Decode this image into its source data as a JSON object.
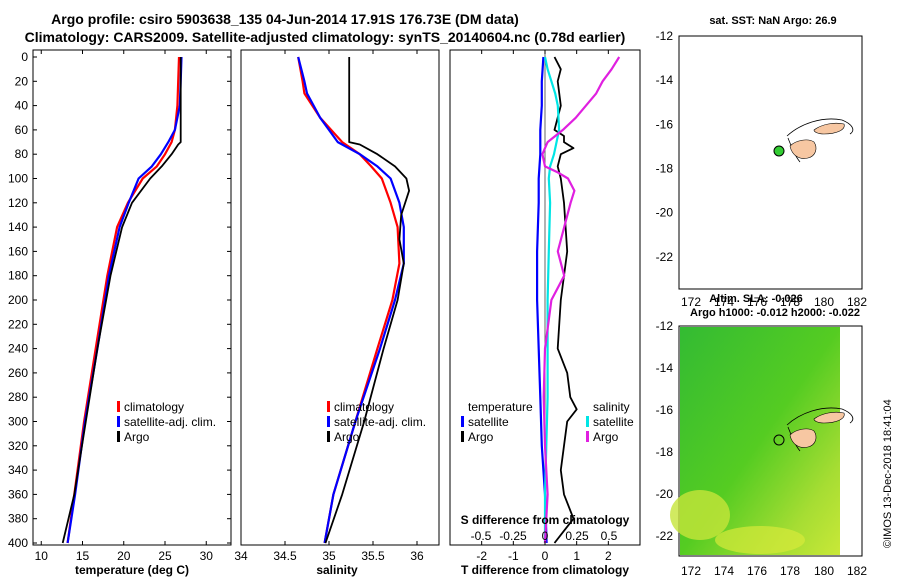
{
  "header": {
    "title_line1": "Argo profile: csiro 5903638_135 04-Jun-2014 17.91S 176.73E (DM data)",
    "title_line2": "Climatology: CARS2009. Satellite-adjusted climatology: synTS_20140604.nc (0.78d earlier)",
    "credit": "©IMOS 13-Dec-2018 18:41:04"
  },
  "colors": {
    "climatology": "#ff0000",
    "satellite": "#0000ff",
    "argo": "#000000",
    "sal_satellite": "#00e5e5",
    "sal_argo": "#e020e0",
    "land": "#f7c7a2"
  },
  "depth_ticks": [
    "0",
    "20",
    "40",
    "60",
    "80",
    "100",
    "120",
    "140",
    "160",
    "180",
    "200",
    "220",
    "240",
    "260",
    "280",
    "300",
    "320",
    "340",
    "360",
    "380",
    "400"
  ],
  "chart_data": [
    {
      "type": "line",
      "id": "temperature",
      "xlabel": "temperature (deg C)",
      "ylabel": "",
      "xlim": [
        9,
        33
      ],
      "ylim": [
        400,
        0
      ],
      "xticks": [
        "10",
        "15",
        "20",
        "25",
        "30"
      ],
      "legend": [
        "climatology",
        "satellite-adj. clim.",
        "Argo"
      ],
      "series": [
        {
          "name": "climatology",
          "x": [
            26.7,
            26.6,
            26.5,
            26.2,
            25.8,
            25.0,
            24.0,
            22.3,
            20.5,
            19.2,
            18.0,
            16.6,
            15.2,
            14.0,
            13.2
          ],
          "y": [
            0,
            20,
            40,
            60,
            70,
            80,
            90,
            100,
            120,
            140,
            180,
            240,
            300,
            360,
            400
          ]
        },
        {
          "name": "satellite-adj. clim.",
          "x": [
            27.0,
            26.9,
            26.8,
            26.2,
            25.4,
            24.5,
            23.4,
            21.8,
            20.6,
            19.5,
            18.2,
            16.8,
            15.3,
            14.1,
            13.2
          ],
          "y": [
            0,
            20,
            40,
            60,
            70,
            80,
            90,
            100,
            120,
            140,
            180,
            240,
            300,
            360,
            400
          ]
        },
        {
          "name": "Argo",
          "x": [
            26.9,
            26.9,
            26.9,
            26.9,
            26.9,
            26.6,
            25.8,
            24.6,
            23.2,
            21.0,
            19.8,
            18.4,
            16.8,
            15.4,
            14.0,
            12.6
          ],
          "y": [
            0,
            20,
            40,
            60,
            70,
            72,
            80,
            90,
            100,
            120,
            140,
            180,
            240,
            300,
            360,
            400
          ]
        }
      ]
    },
    {
      "type": "line",
      "id": "salinity",
      "xlabel": "salinity",
      "ylabel": "",
      "xlim": [
        34.0,
        36.25
      ],
      "ylim": [
        400,
        0
      ],
      "xticks": [
        "34",
        "34.5",
        "35",
        "35.5",
        "36"
      ],
      "legend": [
        "climatology",
        "satellite-adj. clim.",
        "Argo"
      ],
      "series": [
        {
          "name": "climatology",
          "x": [
            34.65,
            34.7,
            34.72,
            34.9,
            35.15,
            35.35,
            35.48,
            35.6,
            35.7,
            35.78,
            35.8,
            35.72,
            35.55,
            35.3,
            35.05,
            34.95
          ],
          "y": [
            0,
            20,
            30,
            50,
            70,
            80,
            90,
            100,
            120,
            140,
            170,
            200,
            240,
            300,
            360,
            400
          ]
        },
        {
          "name": "satellite-adj. clim.",
          "x": [
            34.65,
            34.72,
            34.75,
            34.9,
            35.1,
            35.35,
            35.55,
            35.7,
            35.8,
            35.85,
            35.85,
            35.75,
            35.58,
            35.3,
            35.05,
            34.95
          ],
          "y": [
            0,
            20,
            30,
            50,
            70,
            80,
            90,
            100,
            120,
            140,
            170,
            200,
            240,
            300,
            360,
            400
          ]
        },
        {
          "name": "Argo",
          "x": [
            35.23,
            35.23,
            35.23,
            35.23,
            35.35,
            35.55,
            35.75,
            35.88,
            35.91,
            35.82,
            35.8,
            35.85,
            35.78,
            35.62,
            35.4,
            35.15,
            34.96
          ],
          "y": [
            0,
            20,
            40,
            70,
            72,
            80,
            90,
            100,
            110,
            130,
            150,
            170,
            200,
            240,
            300,
            360,
            400
          ]
        }
      ]
    },
    {
      "type": "line",
      "id": "difference",
      "xlabel": "T difference from climatology",
      "top_label": "S difference from climatology",
      "xlim": [
        -3,
        3
      ],
      "ylim": [
        400,
        0
      ],
      "xticks": [
        "-2",
        "-1",
        "0",
        "1",
        "2"
      ],
      "top_ticks": [
        "-0.5",
        "-0.25",
        "0",
        "0.25",
        "0.5"
      ],
      "legend_left_title": "temperature",
      "legend_right_title": "salinity",
      "legend_left": [
        "satellite",
        "Argo"
      ],
      "legend_right": [
        "satellite",
        "Argo"
      ],
      "series": [
        {
          "name": "T satellite",
          "x": [
            -0.05,
            -0.1,
            -0.1,
            -0.15,
            -0.15,
            -0.2,
            -0.2,
            -0.25,
            -0.25,
            -0.2,
            -0.15,
            -0.1,
            0.0,
            0.05
          ],
          "y": [
            0,
            20,
            40,
            60,
            80,
            100,
            120,
            160,
            200,
            240,
            280,
            320,
            360,
            400
          ]
        },
        {
          "name": "T Argo",
          "x": [
            0.3,
            0.5,
            0.4,
            0.5,
            0.3,
            0.6,
            0.6,
            0.9,
            0.5,
            0.4,
            0.5,
            0.6,
            0.7,
            0.5,
            0.4,
            0.7,
            0.8,
            1.0,
            0.7,
            0.6,
            0.5,
            0.6,
            0.9,
            0.6,
            0.3
          ],
          "y": [
            0,
            10,
            20,
            40,
            60,
            65,
            70,
            75,
            80,
            90,
            100,
            120,
            160,
            200,
            240,
            260,
            280,
            290,
            300,
            320,
            340,
            360,
            380,
            390,
            400
          ]
        },
        {
          "name": "S satellite",
          "x": [
            0.0,
            0.02,
            0.05,
            0.08,
            0.1,
            0.11,
            0.07,
            0.04,
            0.03,
            0.04,
            0.03,
            0.02,
            0.02,
            0.02,
            0.01,
            0.0,
            0.0
          ],
          "y": [
            0,
            10,
            20,
            30,
            40,
            60,
            80,
            90,
            100,
            120,
            160,
            200,
            240,
            280,
            320,
            360,
            400
          ]
        },
        {
          "name": "S Argo",
          "x": [
            0.58,
            0.52,
            0.45,
            0.4,
            0.32,
            0.24,
            0.14,
            0.02,
            -0.02,
            0.0,
            0.1,
            0.18,
            0.23,
            0.2,
            0.15,
            0.1,
            0.15,
            0.05,
            0.0,
            -0.01,
            0.0,
            0.02,
            0.01,
            0.0
          ],
          "y": [
            0,
            10,
            20,
            30,
            40,
            50,
            60,
            70,
            80,
            90,
            95,
            100,
            110,
            120,
            140,
            160,
            180,
            200,
            240,
            280,
            320,
            360,
            380,
            400
          ]
        }
      ]
    }
  ],
  "map_top": {
    "title": "sat. SST: NaN Argo: 26.9",
    "yticks": [
      "-12",
      "-14",
      "-16",
      "-18",
      "-20",
      "-22"
    ],
    "xticks": [
      "172",
      "174",
      "176",
      "178",
      "180",
      "182"
    ]
  },
  "map_bottom": {
    "title_line1": "Altim. SLA: -0.026",
    "title_line2": "Argo h1000: -0.012 h2000: -0.022",
    "yticks": [
      "-12",
      "-14",
      "-16",
      "-18",
      "-20",
      "-22"
    ],
    "xticks": [
      "172",
      "174",
      "176",
      "178",
      "180",
      "182"
    ]
  }
}
